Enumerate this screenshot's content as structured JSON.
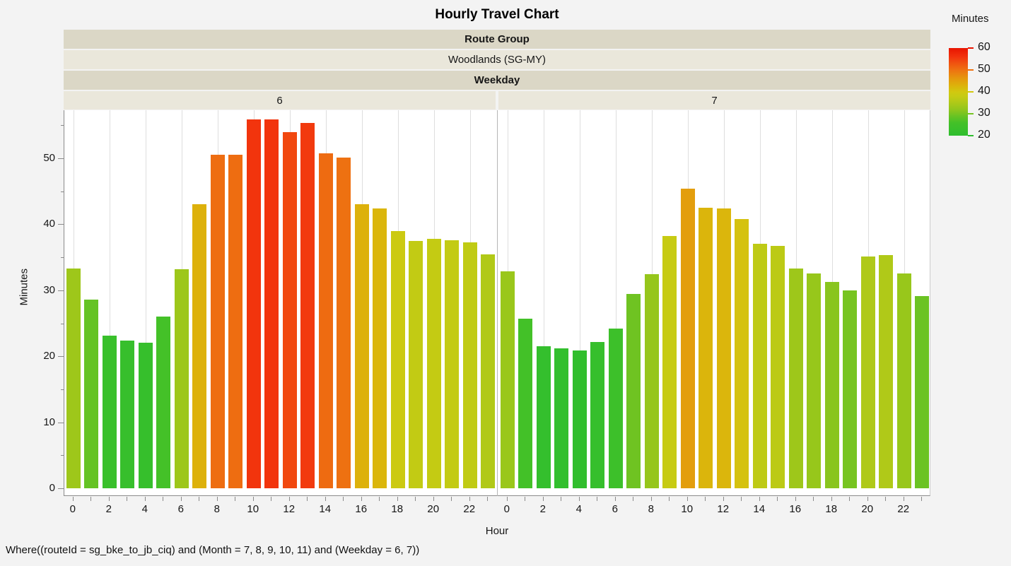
{
  "title": "Hourly Travel Chart",
  "headers": {
    "route_group_label": "Route Group",
    "route_group_value": "Woodlands (SG-MY)",
    "weekday_label": "Weekday"
  },
  "y_axis": {
    "label": "Minutes",
    "ticks": [
      0,
      10,
      20,
      30,
      40,
      50
    ],
    "minor_ticks": [
      5,
      15,
      25,
      35,
      45,
      55
    ]
  },
  "x_axis": {
    "label": "Hour",
    "labeled_ticks": [
      0,
      2,
      4,
      6,
      8,
      10,
      12,
      14,
      16,
      18,
      20,
      22
    ]
  },
  "legend": {
    "title": "Minutes",
    "ticks": [
      60,
      50,
      40,
      30,
      20
    ]
  },
  "footer": "Where((routeId = sg_bke_to_jb_ciq) and (Month = 7, 8, 9, 10, 11) and (Weekday = 6, 7))",
  "chart_data": {
    "type": "bar",
    "title": "Hourly Travel Chart",
    "xlabel": "Hour",
    "ylabel": "Minutes",
    "ylim": [
      0,
      57.3
    ],
    "x": [
      0,
      1,
      2,
      3,
      4,
      5,
      6,
      7,
      8,
      9,
      10,
      11,
      12,
      13,
      14,
      15,
      16,
      17,
      18,
      19,
      20,
      21,
      22,
      23
    ],
    "facet_field": "Weekday",
    "group_field": "Route Group",
    "group_value": "Woodlands (SG-MY)",
    "facets": [
      {
        "label": "6",
        "values": [
          33.3,
          28.6,
          23.1,
          22.4,
          22.1,
          26.0,
          33.2,
          43.0,
          50.5,
          50.5,
          55.9,
          55.9,
          54.0,
          55.3,
          50.7,
          50.1,
          43.0,
          42.4,
          39.0,
          37.5,
          37.8,
          37.6,
          37.3,
          35.4
        ]
      },
      {
        "label": "7",
        "values": [
          32.9,
          25.7,
          21.5,
          21.2,
          20.9,
          22.2,
          24.2,
          29.4,
          32.4,
          38.2,
          45.4,
          42.5,
          42.4,
          40.8,
          37.0,
          36.7,
          33.3,
          32.5,
          31.3,
          30.0,
          35.1,
          35.3,
          32.6,
          29.1
        ]
      }
    ],
    "color_scale": {
      "title": "Minutes",
      "domain": [
        20,
        60
      ],
      "stops": [
        {
          "v": 20,
          "c": "#2ebe2e"
        },
        {
          "v": 26,
          "c": "#44c128"
        },
        {
          "v": 29,
          "c": "#6ac323"
        },
        {
          "v": 32,
          "c": "#92c61c"
        },
        {
          "v": 35,
          "c": "#aec918"
        },
        {
          "v": 38,
          "c": "#c6cb13"
        },
        {
          "v": 40,
          "c": "#d2c80f"
        },
        {
          "v": 43,
          "c": "#ddb10b"
        },
        {
          "v": 46,
          "c": "#e5990d"
        },
        {
          "v": 50,
          "c": "#ee7211"
        },
        {
          "v": 53,
          "c": "#f05310"
        },
        {
          "v": 56,
          "c": "#f2330d"
        },
        {
          "v": 60,
          "c": "#e81400"
        }
      ]
    },
    "grid": "vertical lines at even hours",
    "legend_position": "top-right"
  }
}
